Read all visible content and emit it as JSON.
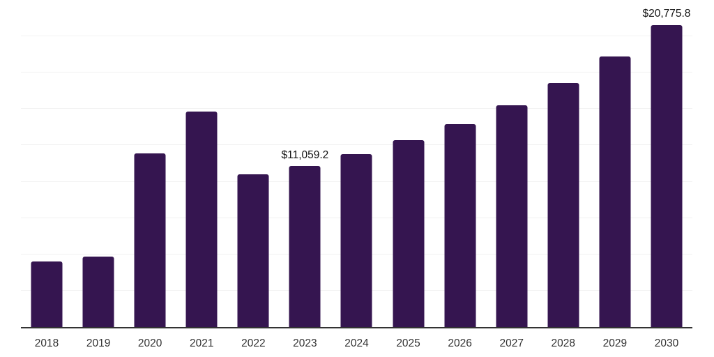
{
  "chart_data": {
    "type": "bar",
    "title": "",
    "xlabel": "",
    "ylabel": "",
    "categories": [
      "2018",
      "2019",
      "2020",
      "2021",
      "2022",
      "2023",
      "2024",
      "2025",
      "2026",
      "2027",
      "2028",
      "2029",
      "2030"
    ],
    "values": [
      4500,
      4870,
      11960,
      14830,
      10510,
      11059.2,
      11900,
      12860,
      13960,
      15270,
      16800,
      18620,
      20775.8
    ],
    "data_labels": {
      "2023": "$11,059.2",
      "2030": "$20,775.8"
    },
    "ylim": [
      0,
      22500
    ],
    "gridline_step": 2500,
    "grid": true,
    "legend": false,
    "y_tick_labels_visible": false,
    "bar_color": "#351550",
    "gridline_color": "#f2f2f2",
    "axis_line_color": "#333333",
    "tick_label_color": "#333333",
    "data_label_color": "#111111",
    "background": "#ffffff"
  }
}
